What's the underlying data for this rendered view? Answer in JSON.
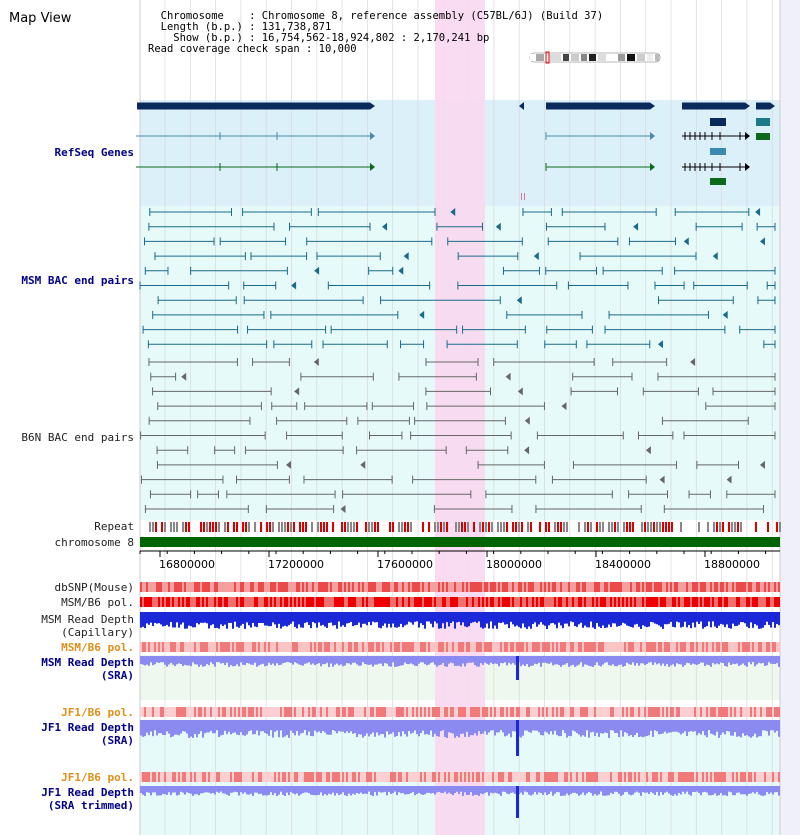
{
  "view": {
    "title": "Map View"
  },
  "info": {
    "chromosome_line": "  Chromosome    : Chromosome 8, reference assembly (C57BL/6J) (Build 37)",
    "length_line": "  Length (b.p.) : 131,738,871",
    "show_line": "    Show (b.p.) : 16,754,562-18,924,802 : 2,170,241 bp",
    "coverage_line": "Read coverage check span : 10,000"
  },
  "tracks": {
    "refseq": "RefSeq Genes",
    "msm_bac": "MSM BAC end pairs",
    "b6n_bac": "B6N BAC end pairs",
    "repeat": "Repeat",
    "chromosome": "chromosome 8",
    "dbsnp": "dbSNP(Mouse)",
    "msm_pol": "MSM/B6 pol.",
    "msm_depth_cap_1": "MSM Read Depth",
    "msm_depth_cap_2": "(Capillary)",
    "msm_pol_2": "MSM/B6 pol.",
    "msm_depth_sra_1": "MSM Read Depth",
    "msm_depth_sra_2": "(SRA)",
    "jf1_pol": "JF1/B6 pol.",
    "jf1_depth_1": "JF1 Read Depth",
    "jf1_depth_2": "(SRA)",
    "jf1_pol_2": "JF1/B6 pol.",
    "jf1_trim_1": "JF1 Read Depth",
    "jf1_trim_2": "(SRA trimmed)"
  },
  "axis": {
    "ticks": [
      "16800000",
      "17200000",
      "17600000",
      "18000000",
      "18400000",
      "18800000"
    ]
  },
  "colors": {
    "refseq_band": "#dcf0fa",
    "bac_band": "#e6fafa",
    "highlight": "#f8d8f0",
    "gene_dark": "#0a2a5c",
    "gene_teal": "#1b7a8a",
    "gene_green": "#0a6a1a",
    "depth_dark": "#1a28d8",
    "depth_light": "#8a8af0",
    "chromosome": "#006400"
  }
}
